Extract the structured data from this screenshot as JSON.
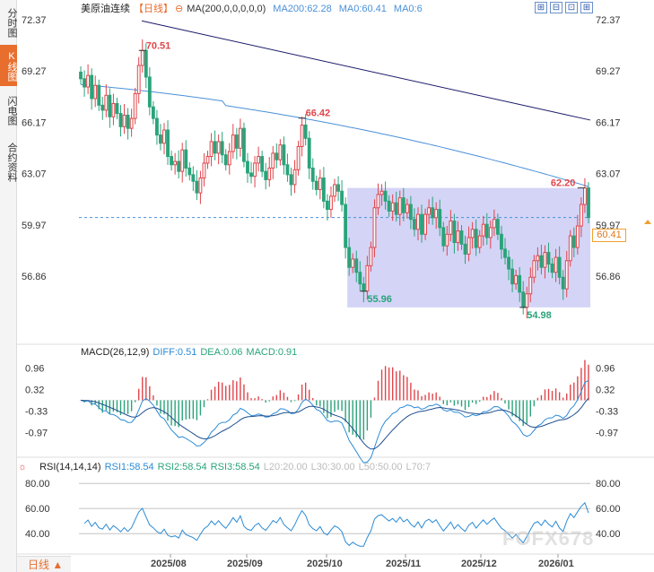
{
  "sidebar": {
    "tabs": [
      {
        "label": "分时图",
        "active": false
      },
      {
        "label": "K线图",
        "active": true
      },
      {
        "label": "闪电图",
        "active": false
      },
      {
        "label": "合约资料",
        "active": false
      }
    ]
  },
  "header": {
    "instrument": "美原油连续",
    "period": "【日线】",
    "ma_label": "MA(200,0,0,0,0,0)",
    "ma200": "MA200:62.28",
    "ma0a": "MA0:60.41",
    "ma0b": "MA0:6",
    "controls": [
      "⊞",
      "⊟",
      "⊡",
      "⊞"
    ]
  },
  "macd_legend": {
    "label": "MACD(26,12,9)",
    "diff": "DIFF:0.51",
    "dea": "DEA:0.06",
    "macd": "MACD:0.91"
  },
  "rsi_legend": {
    "label": "RSI(14,14,14)",
    "rsi1": "RSI1:58.54",
    "rsi2": "RSI2:58.54",
    "rsi3": "RSI3:58.54",
    "l20": "L20:20.00",
    "l30": "L30:30.00",
    "l50": "L50:50.00",
    "l70": "L70:7"
  },
  "last_price": "60.41",
  "bottom_tab": "日线 ▲",
  "watermark": "FOFX678",
  "colors": {
    "up": "#e0454b",
    "down": "#2aa37a",
    "ma200": "#4a90d9",
    "trend": "#1a1a6a",
    "box": "#c9c9f5",
    "diff": "#2b8bd6",
    "dea": "#1f4f8f",
    "rsi": "#2b8bd6"
  },
  "chart_data": [
    {
      "type": "candlestick",
      "y_ticks": [
        72.37,
        69.27,
        66.17,
        63.07,
        59.97,
        56.86
      ],
      "ylim": [
        53.4,
        72.8
      ],
      "x_ticks": [
        "2025/08",
        "2025/09",
        "2025/10",
        "2025/11",
        "2025/12",
        "2026/01"
      ],
      "annotations": [
        {
          "label": "70.51",
          "value": 70.51,
          "kind": "high"
        },
        {
          "label": "66.42",
          "value": 66.42,
          "kind": "high"
        },
        {
          "label": "55.96",
          "value": 55.96,
          "kind": "low"
        },
        {
          "label": "54.98",
          "value": 54.98,
          "kind": "low"
        },
        {
          "label": "62.20",
          "value": 62.2,
          "kind": "high"
        }
      ],
      "reference_line": 60.41,
      "ma200_start": 68.2,
      "ma200_end": 62.28,
      "trendline": {
        "start": 72.3,
        "end": 66.3
      },
      "range_box": {
        "top": 62.2,
        "bottom": 54.98
      },
      "closes": [
        68.8,
        68.3,
        69.0,
        67.6,
        68.4,
        67.2,
        66.9,
        67.8,
        66.5,
        67.3,
        66.7,
        65.9,
        66.6,
        65.8,
        66.4,
        67.9,
        69.6,
        70.51,
        68.9,
        67.1,
        66.4,
        65.4,
        64.9,
        65.7,
        64.1,
        63.6,
        63.8,
        63.2,
        64.5,
        63.4,
        63.0,
        62.6,
        61.9,
        62.8,
        63.7,
        64.1,
        65.0,
        64.3,
        65.0,
        64.2,
        63.6,
        64.4,
        65.4,
        64.6,
        65.8,
        63.8,
        63.1,
        62.9,
        63.7,
        64.1,
        63.2,
        62.7,
        63.4,
        64.3,
        63.9,
        64.8,
        63.6,
        63.0,
        62.4,
        63.3,
        64.7,
        66.0,
        65.2,
        63.4,
        62.6,
        62.1,
        62.8,
        61.4,
        60.9,
        61.7,
        62.4,
        62.0,
        61.2,
        58.6,
        57.4,
        57.9,
        57.1,
        56.4,
        55.96,
        57.5,
        58.6,
        61.0,
        61.8,
        62.0,
        61.4,
        60.8,
        61.3,
        60.6,
        61.6,
        60.7,
        61.2,
        60.3,
        59.7,
        60.6,
        59.4,
        60.6,
        61.0,
        60.4,
        60.9,
        59.8,
        58.7,
        59.4,
        60.2,
        58.9,
        59.6,
        58.8,
        58.2,
        59.2,
        59.7,
        58.6,
        59.3,
        60.0,
        59.2,
        59.8,
        60.3,
        59.4,
        58.5,
        58.0,
        57.3,
        56.4,
        56.9,
        55.9,
        54.98,
        55.8,
        56.8,
        57.8,
        58.1,
        57.4,
        58.3,
        57.6,
        57.1,
        58.0,
        56.8,
        56.1,
        57.8,
        59.3,
        58.6,
        59.9,
        61.2,
        62.2,
        60.41
      ]
    },
    {
      "type": "macd",
      "params": "MACD(26,12,9)",
      "y_ticks": [
        0.96,
        0.32,
        -0.33,
        -0.97
      ],
      "ylim": [
        -1.6,
        1.3
      ],
      "diff": 0.51,
      "dea": 0.06,
      "macd": 0.91
    },
    {
      "type": "rsi",
      "params": "RSI(14,14,14)",
      "y_ticks": [
        80.0,
        60.0,
        40.0
      ],
      "ylim": [
        28,
        88
      ],
      "rsi1": 58.54
    }
  ]
}
